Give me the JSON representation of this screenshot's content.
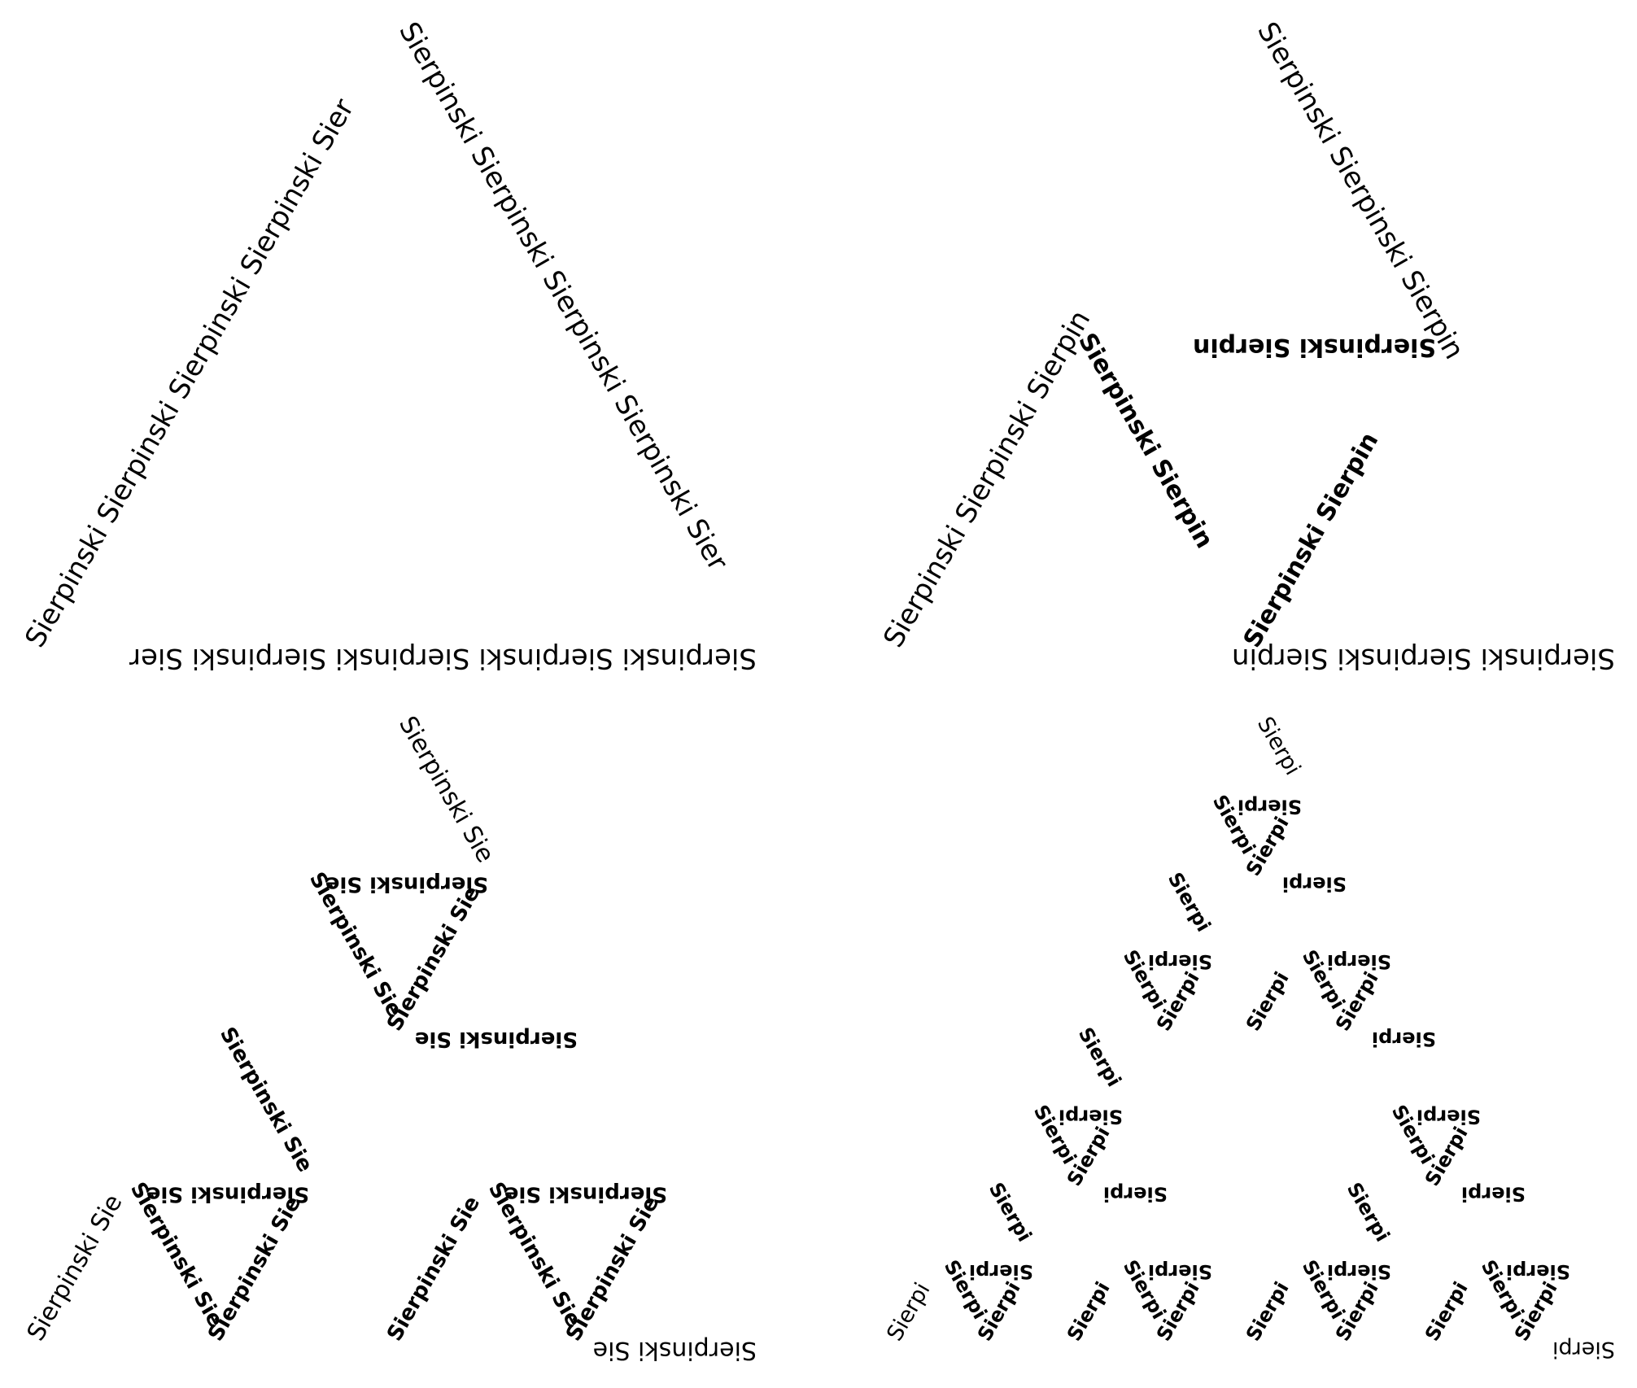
{
  "word": "Sierpinski",
  "colors": {
    "text": "#000000",
    "background": "#ffffff"
  },
  "panels": [
    {
      "name": "level-1",
      "depth": 0,
      "outer_text": "Sierpinski Sierpinski Sierpinski Sierpinski Sier",
      "inner_text": ""
    },
    {
      "name": "level-2",
      "depth": 1,
      "outer_text": "Sierpinski Sierpinski Sierpin",
      "inner_text": "Sierpinski Sierpin"
    },
    {
      "name": "level-3",
      "depth": 2,
      "outer_text": "Sierpinski Sie",
      "inner_text": "Sierpinski Sie"
    },
    {
      "name": "level-4",
      "depth": 3,
      "outer_text": "Sierpi",
      "inner_text": "Sierpi"
    }
  ]
}
